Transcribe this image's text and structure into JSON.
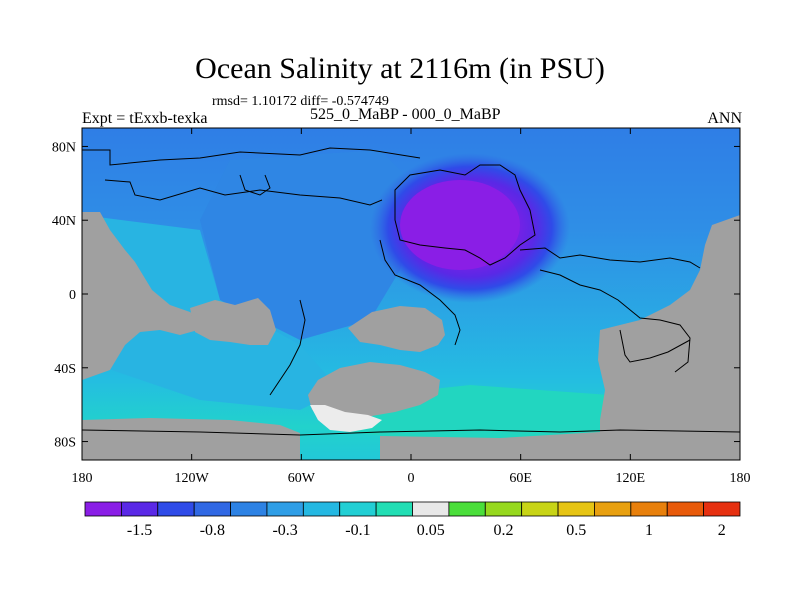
{
  "title": "Ocean Salinity at 2116m (in PSU)",
  "stats": "rmsd= 1.10172 diff= -0.574749",
  "left_label": "Expt = tExxb-texka",
  "center_label": "525_0_MaBP - 000_0_MaBP",
  "right_label": "ANN",
  "colors": {
    "land": "#a0a0a0",
    "coastline": "#000000"
  },
  "map": {
    "lon_range": [
      -180,
      180
    ],
    "lat_range": [
      -90,
      90
    ],
    "lat_ticks": [
      {
        "value": 80,
        "label": "80N"
      },
      {
        "value": 40,
        "label": "40N"
      },
      {
        "value": 0,
        "label": "0"
      },
      {
        "value": -40,
        "label": "40S"
      },
      {
        "value": -80,
        "label": "80S"
      }
    ],
    "lon_ticks": [
      {
        "value": -180,
        "label": "180"
      },
      {
        "value": -120,
        "label": "120W"
      },
      {
        "value": -60,
        "label": "60W"
      },
      {
        "value": 0,
        "label": "0"
      },
      {
        "value": 60,
        "label": "60E"
      },
      {
        "value": 120,
        "label": "120E"
      },
      {
        "value": 180,
        "label": "180"
      }
    ]
  },
  "colorbar": {
    "colors": [
      "#8a1ee6",
      "#5a28e6",
      "#2f4be8",
      "#3068e4",
      "#2d82e4",
      "#2f9ee6",
      "#24b8e2",
      "#22cfd4",
      "#22deb4",
      "#e8e8e8",
      "#4ade3a",
      "#96d81e",
      "#c8d416",
      "#e6c414",
      "#e8a010",
      "#e8800c",
      "#e85a0a",
      "#e63010"
    ],
    "labels": [
      {
        "after_box": 2,
        "text": "-1.5"
      },
      {
        "after_box": 4,
        "text": "-0.8"
      },
      {
        "after_box": 6,
        "text": "-0.3"
      },
      {
        "after_box": 8,
        "text": "-0.1"
      },
      {
        "after_box": 10,
        "text": "0.05"
      },
      {
        "after_box": 12,
        "text": "0.2"
      },
      {
        "after_box": 14,
        "text": "0.5"
      },
      {
        "after_box": 16,
        "text": "1"
      },
      {
        "after_box": 18,
        "text": "2"
      }
    ]
  }
}
